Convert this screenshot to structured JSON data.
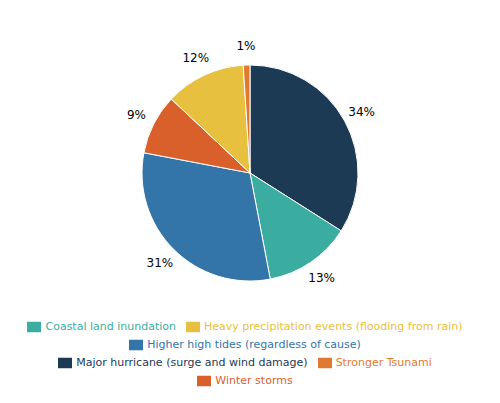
{
  "chart_data": {
    "type": "pie",
    "categories": [
      "Major hurricane (surge and wind damage)",
      "Coastal land inundation",
      "Higher high tides (regardless of cause)",
      "Winter storms",
      "Heavy precipitation events (flooding from rain)",
      "Stronger Tsunami"
    ],
    "values": [
      34,
      13,
      31,
      9,
      12,
      1
    ],
    "value_labels": [
      "34%",
      "13%",
      "31%",
      "9%",
      "12%",
      "1%"
    ],
    "colors": [
      "#1c3a54",
      "#3aada0",
      "#3375a8",
      "#d95f2b",
      "#e8c040",
      "#e07a30"
    ],
    "data_labels": true,
    "legend": "bottom"
  }
}
